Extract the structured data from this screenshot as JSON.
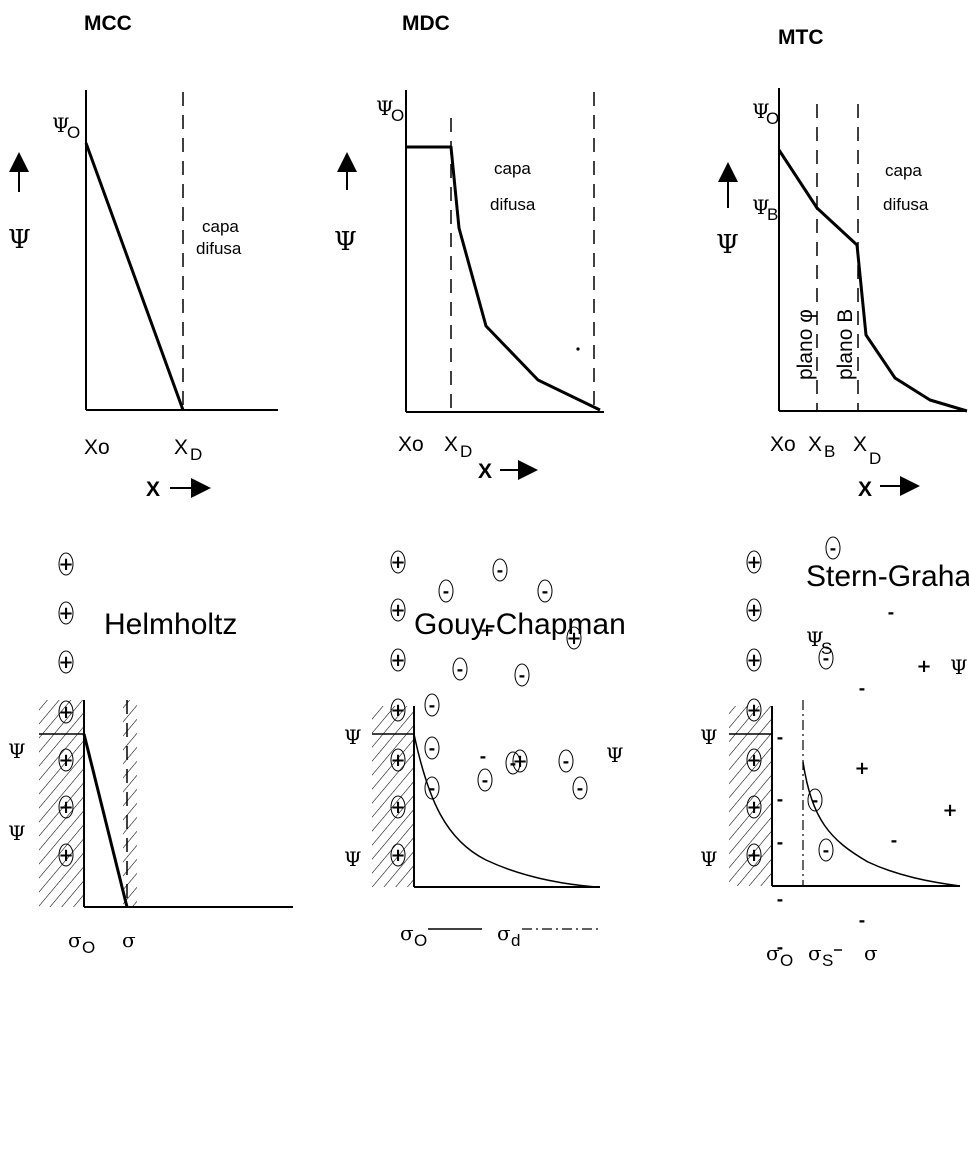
{
  "top_panels": {
    "mcc": {
      "title": "MCC",
      "psi0": "Ψ",
      "psi0_sub": "O",
      "psi_axis": "Ψ",
      "zone_label_1": "capa",
      "zone_label_2": "difusa",
      "x0_label": "Xo",
      "xd_label": "X",
      "xd_sub": "D",
      "x_axis": "X"
    },
    "mdc": {
      "title": "MDC",
      "psi0": "Ψ",
      "psi0_sub": "O",
      "psi_axis": "Ψ",
      "zone_label_1": "capa",
      "zone_label_2": "difusa",
      "x0_label": "Xo",
      "xd_label": "X",
      "xd_sub": "D",
      "x_axis": "X"
    },
    "mtc": {
      "title": "MTC",
      "psi0": "Ψ",
      "psi0_sub": "O",
      "psib": "Ψ",
      "psib_sub": "B",
      "psi_axis": "Ψ",
      "zone_label_1": "capa",
      "zone_label_2": "difusa",
      "plane_phi": "plano φ",
      "plane_b": "plano B",
      "x0_label": "Xo",
      "xb_label": "X",
      "xb_sub": "B",
      "xd_label": "X",
      "xd_sub": "D",
      "x_axis": "X"
    }
  },
  "bottom_panels": {
    "helmholtz": {
      "title": "Helmholtz",
      "psi_1": "Ψ",
      "psi_2": "Ψ",
      "sigma0": "σ",
      "sigma0_sub": "O",
      "sigma": "σ",
      "ion_wall": "+"
    },
    "gouy_chapman": {
      "title": "Gouy-Chapman",
      "psi_1": "Ψ",
      "psi_2": "Ψ",
      "psi_3": "Ψ",
      "sigma0": "σ",
      "sigma0_sub": "O",
      "sigmad": "σ",
      "sigmad_sub": "d",
      "ion_pos": "+",
      "ion_neg": "-"
    },
    "stern_graham": {
      "title": "Stern-Graham",
      "psi_s": "Ψ",
      "psi_s_sub": "S",
      "psi_1": "Ψ",
      "psi_2": "Ψ",
      "psi_3": "Ψ",
      "sigma0": "σ",
      "sigma0_sub": "O",
      "sigmas": "σ",
      "sigmas_sub": "S",
      "sigma": "σ",
      "ion_pos": "+",
      "ion_neg": "-"
    }
  }
}
